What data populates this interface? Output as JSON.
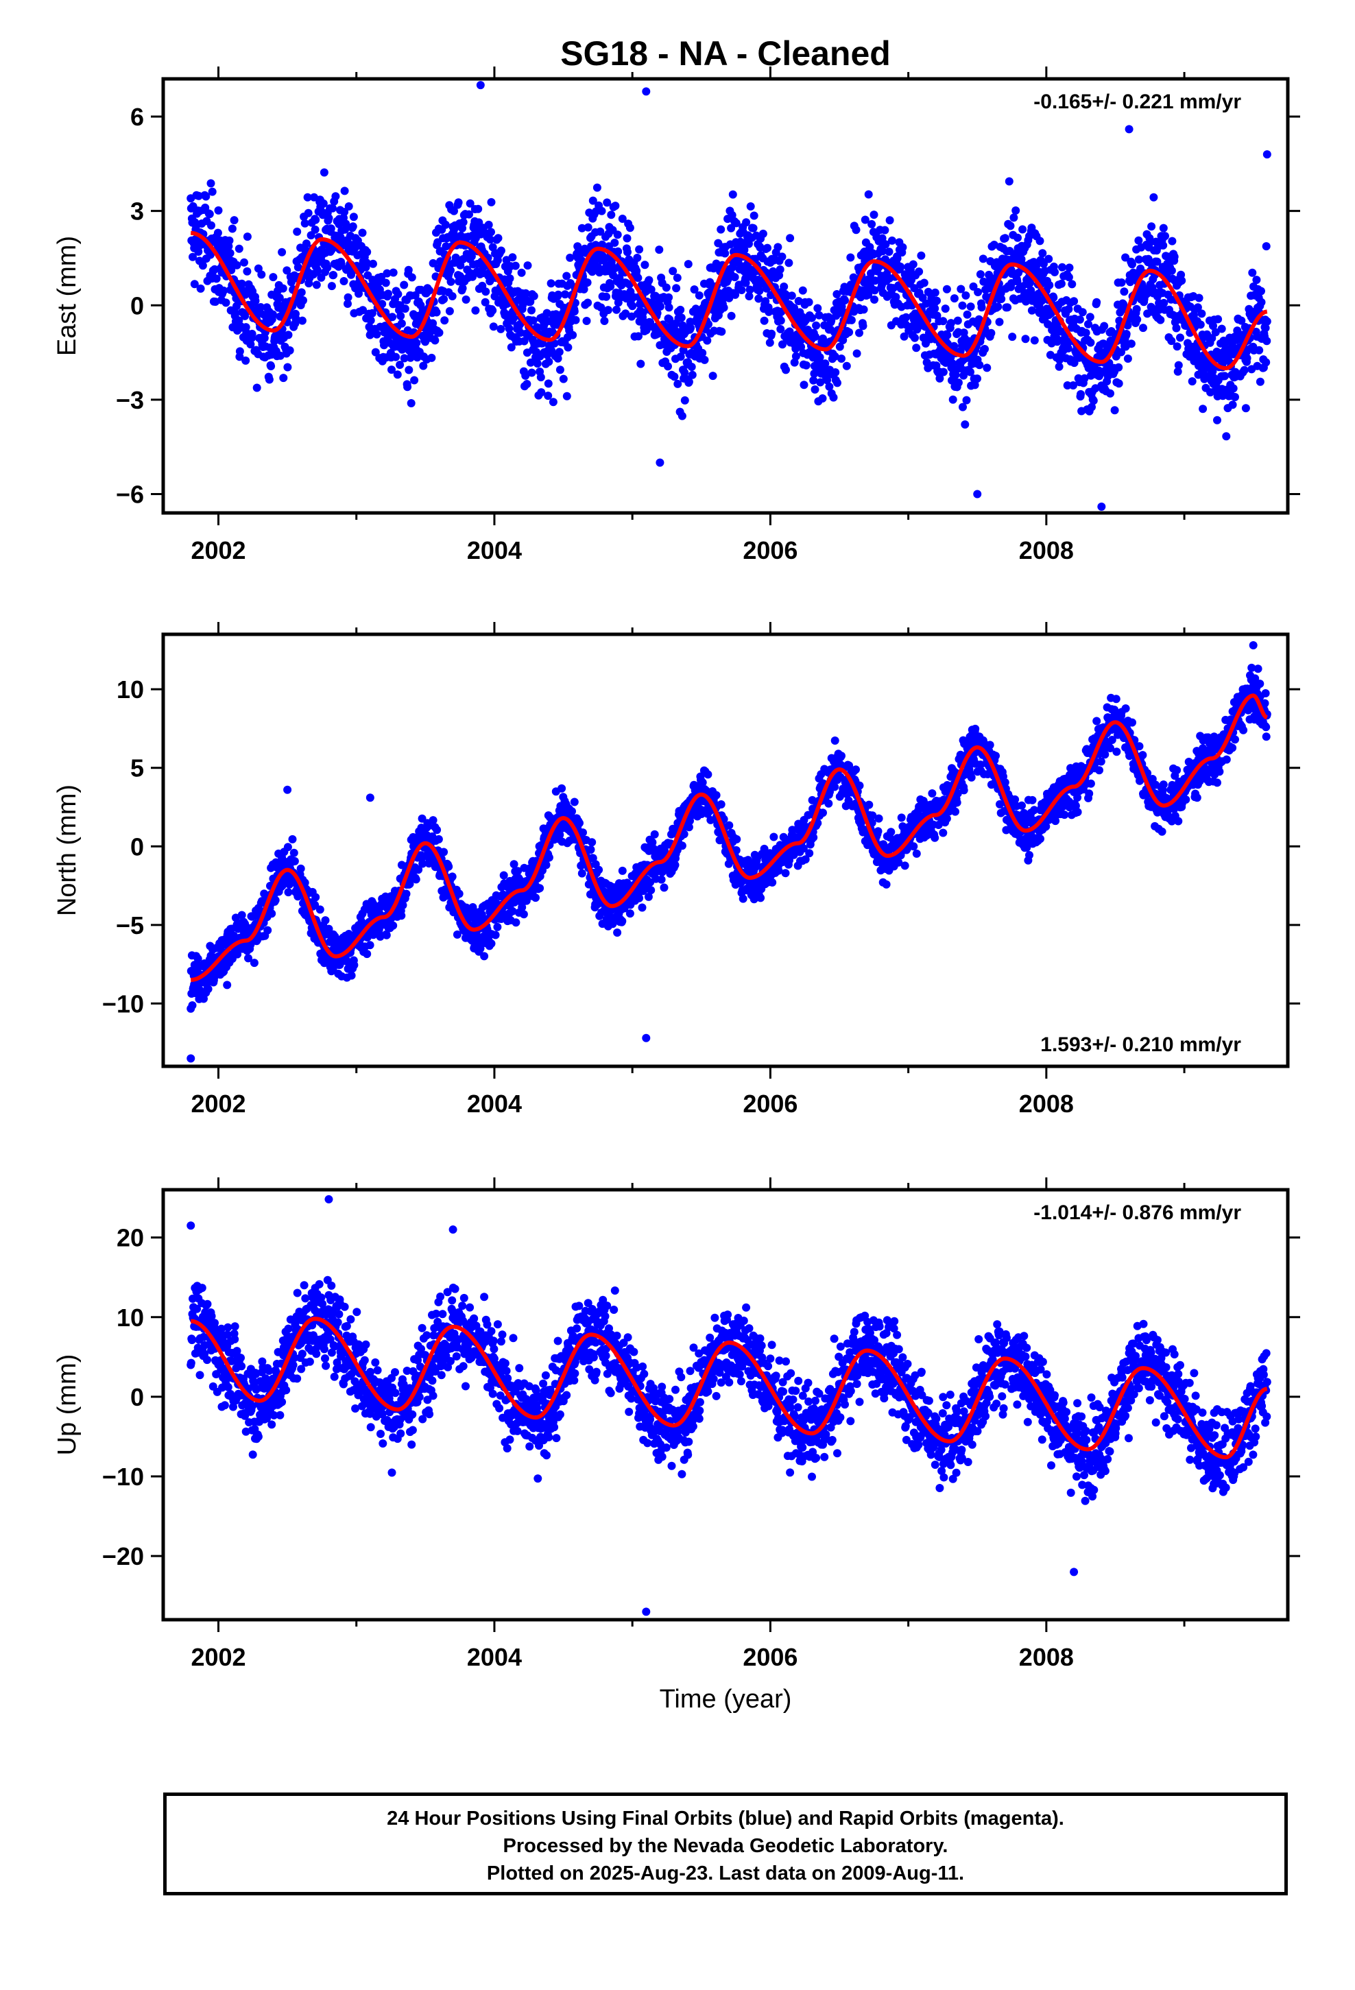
{
  "title": "SG18  - NA - Cleaned",
  "xlabel": "Time (year)",
  "footer": {
    "line1": "24 Hour Positions Using Final Orbits (blue) and Rapid Orbits (magenta).",
    "line2": "Processed by the Nevada Geodetic Laboratory.",
    "line3": "Plotted on 2025-Aug-23. Last data on 2009-Aug-11."
  },
  "colors": {
    "points": "#0000ff",
    "model": "#ff0000",
    "axes": "#000000"
  },
  "chart_data": [
    {
      "type": "scatter",
      "component": "east",
      "ylabel": "East (mm)",
      "rate_label": "-0.165+/- 0.221 mm/yr",
      "rate_position": "top-right",
      "xlim": [
        2001.6,
        2009.75
      ],
      "ylim": [
        -6.6,
        7.2
      ],
      "xticks": [
        2002,
        2004,
        2006,
        2008
      ],
      "yticks": [
        6,
        3,
        0,
        -3,
        -6
      ],
      "trend_mm_per_yr": -0.165,
      "model_curve": {
        "x": [
          2001.8,
          2002.4,
          2002.75,
          2003.4,
          2003.75,
          2004.4,
          2004.75,
          2005.4,
          2005.75,
          2006.4,
          2006.75,
          2007.4,
          2007.75,
          2008.4,
          2008.75,
          2009.3,
          2009.6
        ],
        "y": [
          2.3,
          -0.8,
          2.1,
          -1.0,
          2.0,
          -1.1,
          1.8,
          -1.3,
          1.6,
          -1.4,
          1.4,
          -1.6,
          1.3,
          -1.8,
          1.1,
          -2.0,
          -0.2
        ]
      },
      "scatter_spread_mm": 1.3,
      "outliers": [
        [
          2003.9,
          7.0
        ],
        [
          2005.1,
          6.8
        ],
        [
          2008.6,
          5.6
        ],
        [
          2009.6,
          4.8
        ],
        [
          2008.4,
          -6.4
        ],
        [
          2007.5,
          -6.0
        ],
        [
          2005.2,
          -5.0
        ]
      ]
    },
    {
      "type": "scatter",
      "component": "north",
      "ylabel": "North (mm)",
      "rate_label": "1.593+/- 0.210 mm/yr",
      "rate_position": "bottom-right",
      "xlim": [
        2001.6,
        2009.75
      ],
      "ylim": [
        -14.0,
        13.5
      ],
      "xticks": [
        2002,
        2004,
        2006,
        2008
      ],
      "yticks": [
        10,
        5,
        0,
        -5,
        -10
      ],
      "trend_mm_per_yr": 1.593,
      "model_curve": {
        "x": [
          2001.8,
          2002.2,
          2002.5,
          2002.85,
          2003.2,
          2003.5,
          2003.85,
          2004.2,
          2004.5,
          2004.85,
          2005.2,
          2005.5,
          2005.85,
          2006.2,
          2006.5,
          2006.85,
          2007.2,
          2007.5,
          2007.85,
          2008.2,
          2008.5,
          2008.85,
          2009.2,
          2009.5,
          2009.6
        ],
        "y": [
          -8.5,
          -6.0,
          -1.5,
          -7.0,
          -4.5,
          0.2,
          -5.3,
          -2.8,
          1.8,
          -3.8,
          -1.0,
          3.3,
          -2.0,
          0.2,
          4.9,
          -0.6,
          2.0,
          6.3,
          1.0,
          3.8,
          7.9,
          2.6,
          5.6,
          9.6,
          8.2
        ]
      },
      "scatter_spread_mm": 1.2,
      "outliers": [
        [
          2001.8,
          -13.5
        ],
        [
          2005.1,
          -12.2
        ],
        [
          2009.5,
          12.8
        ],
        [
          2002.5,
          3.6
        ],
        [
          2003.1,
          3.1
        ]
      ]
    },
    {
      "type": "scatter",
      "component": "up",
      "ylabel": "Up (mm)",
      "rate_label": "-1.014+/- 0.876 mm/yr",
      "rate_position": "top-right",
      "xlim": [
        2001.6,
        2009.75
      ],
      "ylim": [
        -28.0,
        26.0
      ],
      "xticks": [
        2002,
        2004,
        2006,
        2008
      ],
      "yticks": [
        20,
        10,
        0,
        -10,
        -20
      ],
      "trend_mm_per_yr": -1.014,
      "model_curve": {
        "x": [
          2001.8,
          2002.3,
          2002.7,
          2003.3,
          2003.7,
          2004.3,
          2004.7,
          2005.3,
          2005.7,
          2006.3,
          2006.7,
          2007.3,
          2007.7,
          2008.3,
          2008.7,
          2009.3,
          2009.6
        ],
        "y": [
          9.5,
          -0.5,
          9.8,
          -1.6,
          8.8,
          -2.6,
          7.8,
          -3.6,
          6.8,
          -4.6,
          5.8,
          -5.6,
          4.8,
          -6.6,
          3.6,
          -7.6,
          1.0
        ]
      },
      "scatter_spread_mm": 4.0,
      "outliers": [
        [
          2005.1,
          -27.0
        ],
        [
          2002.8,
          24.8
        ],
        [
          2008.2,
          -22.0
        ],
        [
          2001.8,
          21.5
        ],
        [
          2003.7,
          21.0
        ]
      ]
    }
  ]
}
